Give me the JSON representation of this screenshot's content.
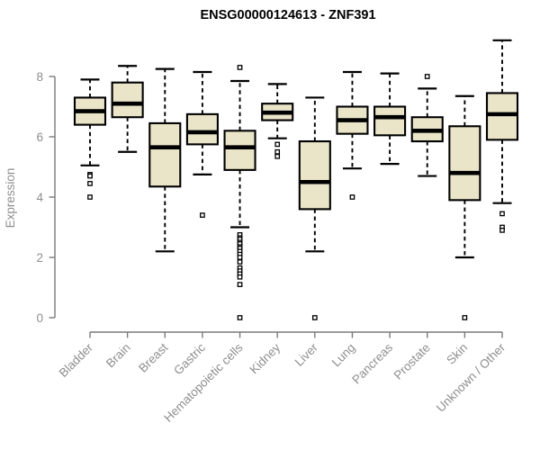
{
  "chart_data": {
    "type": "boxplot",
    "title": "ENSG00000124613 - ZNF391",
    "ylabel": "Expression",
    "xlabel": "",
    "ylim": [
      0,
      9.3
    ],
    "yticks": [
      0,
      2,
      4,
      6,
      8
    ],
    "grid": false,
    "legend": "none",
    "categories": [
      "Bladder",
      "Brain",
      "Breast",
      "Gastric",
      "Hematopoietic cells",
      "Kidney",
      "Liver",
      "Lung",
      "Pancreas",
      "Prostate",
      "Skin",
      "Unknown / Other"
    ],
    "boxes": [
      {
        "category": "Bladder",
        "whisker_low": 5.05,
        "q1": 6.4,
        "median": 6.85,
        "q3": 7.3,
        "whisker_high": 7.9,
        "outliers": [
          4.75,
          4.7,
          4.45,
          4.0
        ]
      },
      {
        "category": "Brain",
        "whisker_low": 5.5,
        "q1": 6.65,
        "median": 7.1,
        "q3": 7.8,
        "whisker_high": 8.35,
        "outliers": []
      },
      {
        "category": "Breast",
        "whisker_low": 2.2,
        "q1": 4.35,
        "median": 5.65,
        "q3": 6.45,
        "whisker_high": 8.25,
        "outliers": []
      },
      {
        "category": "Gastric",
        "whisker_low": 4.75,
        "q1": 5.75,
        "median": 6.15,
        "q3": 6.75,
        "whisker_high": 8.15,
        "outliers": [
          3.4
        ]
      },
      {
        "category": "Hematopoietic cells",
        "whisker_low": 3.0,
        "q1": 4.9,
        "median": 5.65,
        "q3": 6.2,
        "whisker_high": 7.85,
        "outliers": [
          8.3,
          2.75,
          2.65,
          2.6,
          2.5,
          2.45,
          2.35,
          2.3,
          2.2,
          2.1,
          2.0,
          1.85,
          1.65,
          1.55,
          1.45,
          1.35,
          1.1,
          0.0
        ]
      },
      {
        "category": "Kidney",
        "whisker_low": 5.95,
        "q1": 6.55,
        "median": 6.8,
        "q3": 7.1,
        "whisker_high": 7.75,
        "outliers": [
          5.75,
          5.5,
          5.35
        ]
      },
      {
        "category": "Liver",
        "whisker_low": 2.2,
        "q1": 3.6,
        "median": 4.5,
        "q3": 5.85,
        "whisker_high": 7.3,
        "outliers": [
          0.0
        ]
      },
      {
        "category": "Lung",
        "whisker_low": 4.95,
        "q1": 6.1,
        "median": 6.55,
        "q3": 7.0,
        "whisker_high": 8.15,
        "outliers": [
          4.0
        ]
      },
      {
        "category": "Pancreas",
        "whisker_low": 5.1,
        "q1": 6.05,
        "median": 6.65,
        "q3": 7.0,
        "whisker_high": 8.1,
        "outliers": []
      },
      {
        "category": "Prostate",
        "whisker_low": 4.7,
        "q1": 5.85,
        "median": 6.2,
        "q3": 6.65,
        "whisker_high": 7.6,
        "outliers": [
          8.0
        ]
      },
      {
        "category": "Skin",
        "whisker_low": 2.0,
        "q1": 3.9,
        "median": 4.8,
        "q3": 6.35,
        "whisker_high": 7.35,
        "outliers": [
          0.0
        ]
      },
      {
        "category": "Unknown / Other",
        "whisker_low": 3.8,
        "q1": 5.9,
        "median": 6.75,
        "q3": 7.45,
        "whisker_high": 9.2,
        "outliers": [
          3.45,
          3.0,
          2.9
        ]
      }
    ],
    "colors": {
      "background": "#ffffff",
      "box_fill": "#EAE5C9",
      "box_border": "#000000",
      "median": "#000000",
      "whisker": "#000000",
      "outlier_stroke": "#000000",
      "outlier_fill": "#ffffff",
      "axis_line": "#7a7a7a",
      "tick_text": "#8e8e8e",
      "title_text": "#000000"
    }
  }
}
